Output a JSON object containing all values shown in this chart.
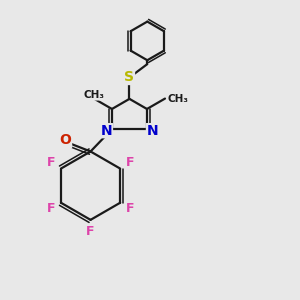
{
  "bg_color": "#e8e8e8",
  "bond_color": "#1a1a1a",
  "S_color": "#b8b800",
  "N_color": "#0000cc",
  "O_color": "#cc2200",
  "F_color": "#dd44aa",
  "lw": 1.6,
  "dbo": 0.12,
  "xlim": [
    0,
    10
  ],
  "ylim": [
    0,
    10
  ]
}
